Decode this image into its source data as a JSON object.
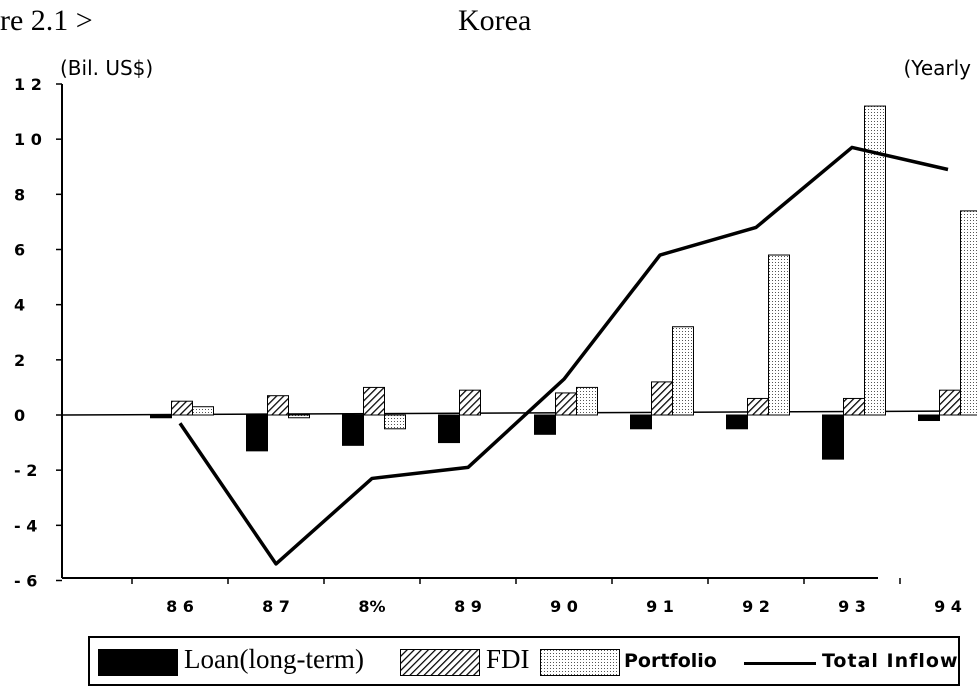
{
  "figure_label": "re 2.1 >",
  "title": "Korea",
  "unit_left": "(Bil. US$)",
  "unit_right": "(Yearly",
  "chart_data": {
    "type": "bar",
    "title": "Korea",
    "ylabel": "(Bil. US$)",
    "xlabel": "(Yearly",
    "categories": [
      "8 6",
      "8 7",
      "8%",
      "8 9",
      "9 0",
      "9 1",
      "9 2",
      "9 3",
      "9 4"
    ],
    "ylim": [
      -6,
      12
    ],
    "yticks": [
      12,
      10,
      8,
      6,
      4,
      2,
      0,
      -2,
      -4,
      -6
    ],
    "ytick_labels": [
      "1 2",
      "1 0",
      "8",
      "6",
      "4",
      "2",
      "0",
      "- 2",
      "- 4",
      "- 6"
    ],
    "series": [
      {
        "name": "Loan(long-term)",
        "kind": "bar",
        "pattern": "solid",
        "values": [
          -0.1,
          -1.3,
          -1.1,
          -1.0,
          -0.7,
          -0.5,
          -0.5,
          -1.6,
          -0.2
        ]
      },
      {
        "name": "FDI",
        "kind": "bar",
        "pattern": "hatch",
        "values": [
          0.5,
          0.7,
          1.0,
          0.9,
          0.8,
          1.2,
          0.6,
          0.6,
          0.9
        ]
      },
      {
        "name": "Portfolio",
        "kind": "bar",
        "pattern": "dots",
        "values": [
          0.3,
          -0.1,
          -0.5,
          0.0,
          1.0,
          3.2,
          5.8,
          11.2,
          7.4
        ]
      },
      {
        "name": "Total Inflow",
        "kind": "line",
        "values": [
          -0.3,
          -5.4,
          -2.3,
          -1.9,
          1.3,
          5.8,
          6.8,
          9.7,
          8.9
        ]
      }
    ],
    "grid": false,
    "legend_position": "bottom"
  },
  "legend": {
    "loan": "Loan(long-term)",
    "fdi": "FDI",
    "portfolio": "Portfolio",
    "total": "Total Inflow"
  },
  "colors": {
    "ink": "#000000",
    "background": "#ffffff"
  }
}
